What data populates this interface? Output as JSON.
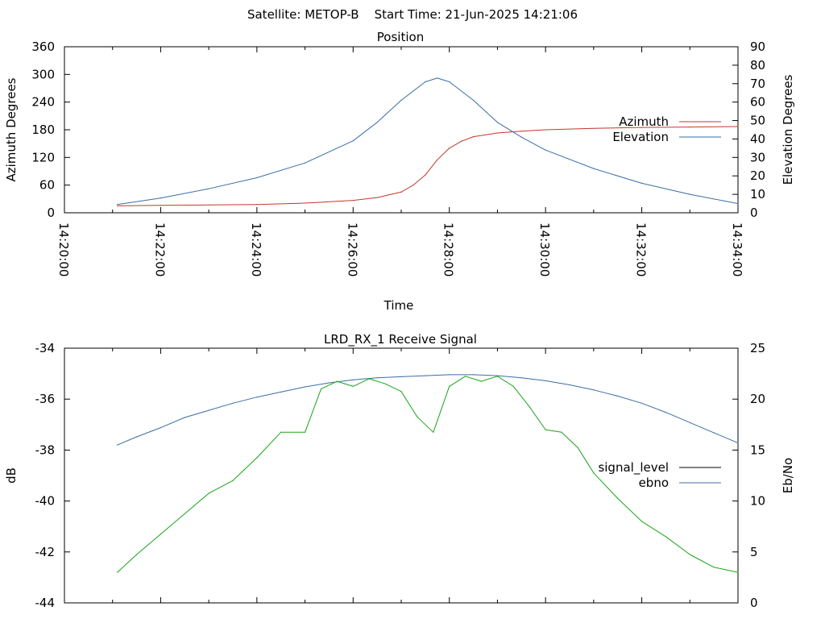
{
  "figure_title": "Satellite: METOP-B    Start Time: 21-Jun-2025 14:21:06",
  "chart_data": [
    {
      "type": "line",
      "title": "Position",
      "xlabel": "Time",
      "ylabel": "Azimuth Degrees",
      "y2label": "Elevation Degrees",
      "xticks": [
        "14:20:00",
        "14:22:00",
        "14:24:00",
        "14:26:00",
        "14:28:00",
        "14:30:00",
        "14:32:00",
        "14:34:00"
      ],
      "xlim": [
        "14:20:00",
        "14:34:00"
      ],
      "ylim": [
        0,
        360
      ],
      "y2lim": [
        0,
        90
      ],
      "yticks": [
        0,
        60,
        120,
        180,
        240,
        300,
        360
      ],
      "y2ticks": [
        0,
        10,
        20,
        30,
        40,
        50,
        60,
        70,
        80,
        90
      ],
      "legend": "right",
      "series": [
        {
          "name": "Azimuth",
          "axis": "left",
          "color": "#c0392b",
          "x": [
            "14:21:06",
            "14:22:00",
            "14:23:00",
            "14:24:00",
            "14:25:00",
            "14:26:00",
            "14:26:30",
            "14:27:00",
            "14:27:15",
            "14:27:30",
            "14:27:45",
            "14:28:00",
            "14:28:15",
            "14:28:30",
            "14:29:00",
            "14:29:30",
            "14:30:00",
            "14:31:00",
            "14:32:00",
            "14:33:00",
            "14:34:00"
          ],
          "values": [
            15,
            16,
            17,
            18,
            21,
            27,
            33,
            45,
            60,
            82,
            115,
            140,
            155,
            165,
            173,
            177,
            180,
            183,
            185,
            186,
            187
          ]
        },
        {
          "name": "Elevation",
          "axis": "right",
          "color": "#3a6ea5",
          "x": [
            "14:21:06",
            "14:22:00",
            "14:23:00",
            "14:24:00",
            "14:25:00",
            "14:26:00",
            "14:26:30",
            "14:27:00",
            "14:27:30",
            "14:27:45",
            "14:28:00",
            "14:28:30",
            "14:29:00",
            "14:29:30",
            "14:30:00",
            "14:31:00",
            "14:32:00",
            "14:33:00",
            "14:34:00"
          ],
          "values": [
            4.5,
            8,
            13,
            19,
            27,
            39,
            49,
            61,
            71,
            73,
            71,
            61,
            49,
            41,
            34,
            24,
            16,
            10,
            5
          ]
        }
      ]
    },
    {
      "type": "line",
      "title": "LRD_RX_1 Receive Signal",
      "xlabel": "",
      "ylabel": "dB",
      "y2label": "Eb/No",
      "xlim": [
        "14:20:00",
        "14:34:00"
      ],
      "ylim": [
        -44,
        -34
      ],
      "y2lim": [
        0,
        25
      ],
      "yticks": [
        -44,
        -42,
        -40,
        -38,
        -36,
        -34
      ],
      "y2ticks": [
        0,
        5,
        10,
        15,
        20,
        25
      ],
      "legend": "right",
      "series": [
        {
          "name": "signal_level",
          "axis": "left",
          "color": "#000000",
          "x": [],
          "values": []
        },
        {
          "name": "ebno",
          "axis": "right",
          "color": "#3a6ea5",
          "x": [
            "14:21:06",
            "14:21:30",
            "14:22:00",
            "14:22:30",
            "14:23:00",
            "14:23:30",
            "14:24:00",
            "14:24:30",
            "14:25:00",
            "14:25:30",
            "14:26:00",
            "14:26:30",
            "14:27:00",
            "14:27:30",
            "14:28:00",
            "14:28:30",
            "14:29:00",
            "14:29:30",
            "14:30:00",
            "14:30:30",
            "14:31:00",
            "14:31:30",
            "14:32:00",
            "14:32:30",
            "14:33:00",
            "14:33:30",
            "14:34:00"
          ],
          "values": [
            15.5,
            16.3,
            17.2,
            18.2,
            18.9,
            19.6,
            20.2,
            20.7,
            21.2,
            21.6,
            21.9,
            22.1,
            22.2,
            22.3,
            22.4,
            22.4,
            22.3,
            22.1,
            21.8,
            21.4,
            20.9,
            20.3,
            19.6,
            18.7,
            17.7,
            16.7,
            15.7
          ]
        },
        {
          "name": "",
          "axis": "left",
          "color": "#1aa31a",
          "x": [
            "14:21:06",
            "14:21:30",
            "14:22:00",
            "14:22:30",
            "14:23:00",
            "14:23:30",
            "14:24:00",
            "14:24:30",
            "14:25:00",
            "14:25:20",
            "14:25:40",
            "14:26:00",
            "14:26:20",
            "14:26:40",
            "14:27:00",
            "14:27:20",
            "14:27:40",
            "14:28:00",
            "14:28:20",
            "14:28:40",
            "14:29:00",
            "14:29:20",
            "14:29:40",
            "14:30:00",
            "14:30:20",
            "14:30:40",
            "14:31:00",
            "14:31:30",
            "14:32:00",
            "14:32:30",
            "14:33:00",
            "14:33:30",
            "14:34:00"
          ],
          "values": [
            -42.8,
            -42.1,
            -41.3,
            -40.5,
            -39.7,
            -39.2,
            -38.3,
            -37.3,
            -37.3,
            -35.6,
            -35.3,
            -35.5,
            -35.2,
            -35.4,
            -35.7,
            -36.7,
            -37.3,
            -35.5,
            -35.1,
            -35.3,
            -35.1,
            -35.5,
            -36.3,
            -37.2,
            -37.3,
            -37.9,
            -38.9,
            -39.9,
            -40.8,
            -41.4,
            -42.1,
            -42.6,
            -42.8
          ]
        }
      ]
    }
  ]
}
